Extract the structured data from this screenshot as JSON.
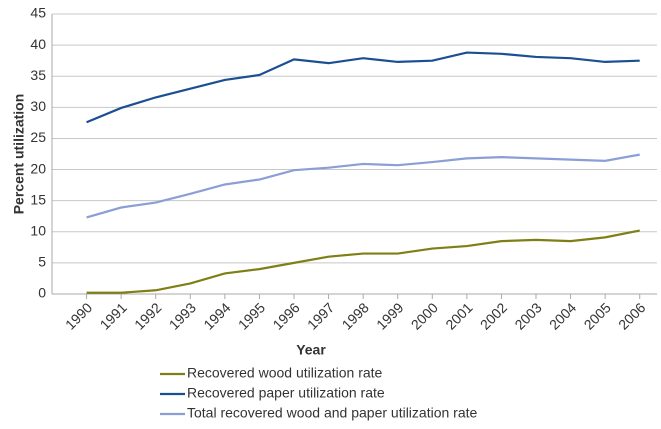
{
  "chart_data": {
    "type": "line",
    "x": [
      1990,
      1991,
      1992,
      1993,
      1994,
      1995,
      1996,
      1997,
      1998,
      1999,
      2000,
      2001,
      2002,
      2003,
      2004,
      2005,
      2006
    ],
    "xlim": [
      1989,
      2006.5
    ],
    "xticks": [
      1990,
      1991,
      1992,
      1993,
      1994,
      1995,
      1996,
      1997,
      1998,
      1999,
      2000,
      2001,
      2002,
      2003,
      2004,
      2005,
      2006
    ],
    "ylim": [
      0,
      45
    ],
    "yticks": [
      0,
      5,
      10,
      15,
      20,
      25,
      30,
      35,
      40,
      45
    ],
    "grid": true,
    "x_label": "Year",
    "y_label": "Percent utilization",
    "legend": "bottom",
    "series": [
      {
        "name": "Recovered wood utilization rate",
        "color": "#7f7f16",
        "values": [
          0.2,
          0.2,
          0.6,
          1.7,
          3.3,
          4.0,
          5.0,
          6.0,
          6.5,
          6.5,
          7.3,
          7.7,
          8.5,
          8.7,
          8.5,
          9.1,
          10.2
        ]
      },
      {
        "name": "Recovered paper utilization rate",
        "color": "#1b4f91",
        "values": [
          27.6,
          29.9,
          31.6,
          33.0,
          34.4,
          35.2,
          37.7,
          37.1,
          37.9,
          37.3,
          37.5,
          38.8,
          38.6,
          38.1,
          37.9,
          37.3,
          37.5
        ]
      },
      {
        "name": "Total recovered wood and paper utilization rate",
        "color": "#8b9fd6",
        "values": [
          12.3,
          13.9,
          14.7,
          16.1,
          17.6,
          18.4,
          19.9,
          20.3,
          20.9,
          20.7,
          21.2,
          21.8,
          22.0,
          21.8,
          21.6,
          21.4,
          22.4
        ]
      }
    ]
  }
}
